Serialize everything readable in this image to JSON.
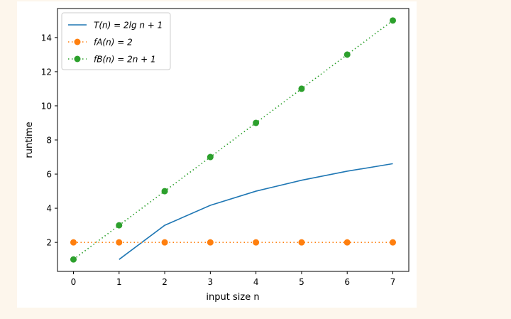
{
  "chart_data": {
    "type": "line",
    "title": "",
    "xlabel": "input size n",
    "ylabel": "runtime",
    "xlim": [
      -0.35,
      7.35
    ],
    "ylim": [
      0.3,
      15.7
    ],
    "xticks": [
      0,
      1,
      2,
      3,
      4,
      5,
      6,
      7
    ],
    "yticks": [
      2,
      4,
      6,
      8,
      10,
      12,
      14
    ],
    "legend_position": "top-left",
    "series": [
      {
        "name": "T(n) = 2lg n + 1",
        "color": "#1f77b4",
        "style": "solid",
        "marker": "none",
        "x": [
          1,
          2,
          3,
          4,
          5,
          6,
          7
        ],
        "values": [
          1,
          3,
          4.17,
          5,
          5.64,
          6.17,
          6.61
        ]
      },
      {
        "name": "fA(n) = 2",
        "color": "#ff7f0e",
        "style": "dotted",
        "marker": "circle",
        "x": [
          0,
          1,
          2,
          3,
          4,
          5,
          6,
          7
        ],
        "values": [
          2,
          2,
          2,
          2,
          2,
          2,
          2,
          2
        ]
      },
      {
        "name": "fB(n) = 2n + 1",
        "color": "#2ca02c",
        "style": "dotted",
        "marker": "circle",
        "x": [
          0,
          1,
          2,
          3,
          4,
          5,
          6,
          7
        ],
        "values": [
          1,
          3,
          5,
          7,
          9,
          11,
          13,
          15
        ]
      }
    ]
  }
}
